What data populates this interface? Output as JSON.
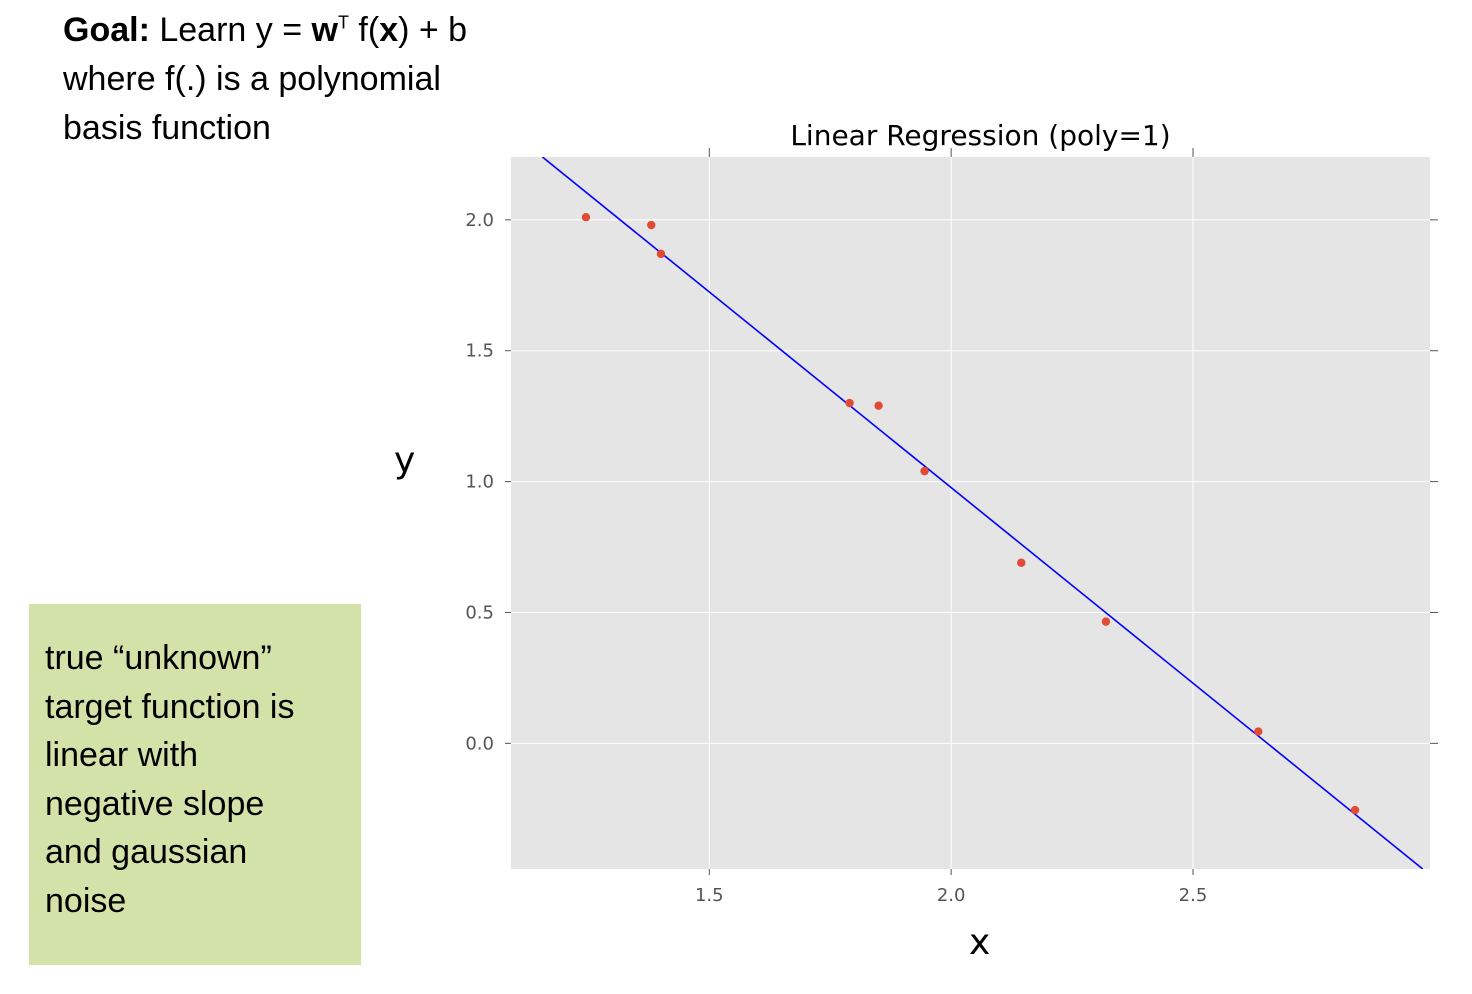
{
  "goal": {
    "bold": "Goal:",
    "pre": " Learn y = ",
    "w": "w",
    "sup": "T",
    "mid": " f(",
    "x": "x",
    "post": ") + b",
    "line2": "where f(.) is a polynomial",
    "line3": "basis function"
  },
  "note": {
    "lines": [
      "true “unknown”",
      "target function is",
      "linear with",
      "negative slope",
      "and gaussian",
      "noise"
    ]
  },
  "colors": {
    "plot_bg": "#e5e5e5",
    "grid": "#ffffff",
    "line": "#0000ff",
    "points": "#e24a33",
    "note_bg": "#d3e2a9"
  },
  "chart_data": {
    "type": "scatter",
    "title": "Linear Regression (poly=1)",
    "xlabel": "x",
    "ylabel": "y",
    "xlim": [
      1.09,
      2.99
    ],
    "ylim": [
      -0.48,
      2.24
    ],
    "xticks": [
      1.5,
      2.0,
      2.5
    ],
    "xtick_labels": [
      "1.5",
      "2.0",
      "2.5"
    ],
    "yticks": [
      0.0,
      0.5,
      1.0,
      1.5,
      2.0
    ],
    "ytick_labels": [
      "0.0",
      "0.5",
      "1.0",
      "1.5",
      "2.0"
    ],
    "grid": true,
    "points": {
      "x": [
        1.245,
        1.38,
        1.4,
        1.79,
        1.85,
        1.945,
        2.145,
        2.32,
        2.635,
        2.835
      ],
      "y": [
        2.01,
        1.98,
        1.87,
        1.3,
        1.29,
        1.04,
        0.69,
        0.465,
        0.045,
        -0.255
      ]
    },
    "fit_line": {
      "x": [
        1.155,
        2.975
      ],
      "y": [
        2.24,
        -0.48
      ]
    }
  }
}
